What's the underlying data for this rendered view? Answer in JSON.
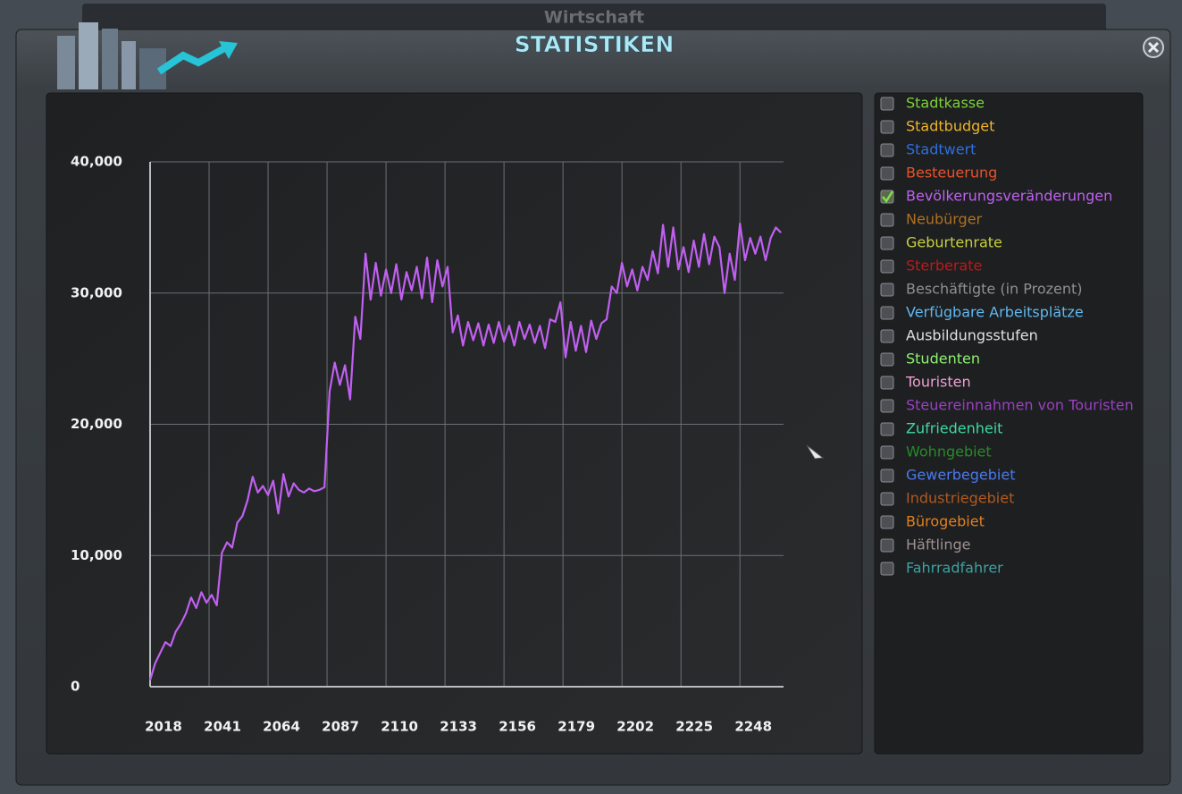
{
  "header": {
    "title": "STATISTIKEN",
    "behind_tab": "Wirtschaft"
  },
  "legend": [
    {
      "label": "Stadtkasse",
      "color": "#7fd13b",
      "checked": false
    },
    {
      "label": "Stadtbudget",
      "color": "#f0b429",
      "checked": false
    },
    {
      "label": "Stadtwert",
      "color": "#2f6fe0",
      "checked": false
    },
    {
      "label": "Besteuerung",
      "color": "#e8522a",
      "checked": false
    },
    {
      "label": "Bevölkerungsveränderungen",
      "color": "#c060f0",
      "checked": true
    },
    {
      "label": "Neubürger",
      "color": "#b07020",
      "checked": false
    },
    {
      "label": "Geburtenrate",
      "color": "#c8d040",
      "checked": false
    },
    {
      "label": "Sterberate",
      "color": "#c01818",
      "checked": false
    },
    {
      "label": "Beschäftigte (in Prozent)",
      "color": "#909090",
      "checked": false
    },
    {
      "label": "Verfügbare Arbeitsplätze",
      "color": "#60b8f0",
      "checked": false
    },
    {
      "label": "Ausbildungsstufen",
      "color": "#e0e0e0",
      "checked": false
    },
    {
      "label": "Studenten",
      "color": "#90f070",
      "checked": false
    },
    {
      "label": "Touristen",
      "color": "#f0a0d0",
      "checked": false
    },
    {
      "label": "Steuereinnahmen von Touristen",
      "color": "#9a40c0",
      "checked": false
    },
    {
      "label": "Zufriedenheit",
      "color": "#40d8a0",
      "checked": false
    },
    {
      "label": "Wohngebiet",
      "color": "#2a8a2a",
      "checked": false
    },
    {
      "label": "Gewerbegebiet",
      "color": "#4a7af0",
      "checked": false
    },
    {
      "label": "Industriegebiet",
      "color": "#b05a20",
      "checked": false
    },
    {
      "label": "Bürogebiet",
      "color": "#e08020",
      "checked": false
    },
    {
      "label": "Häftlinge",
      "color": "#a09090",
      "checked": false
    },
    {
      "label": "Fahrradfahrer",
      "color": "#40a0a0",
      "checked": false
    }
  ],
  "chart_data": {
    "type": "line",
    "xlim": [
      2018,
      2265
    ],
    "xticks": [
      2018,
      2041,
      2064,
      2087,
      2110,
      2133,
      2156,
      2179,
      2202,
      2225,
      2248
    ],
    "ylim": [
      0,
      40000
    ],
    "yticks": [
      0,
      {
        "value": 10000,
        "label": "10,000"
      },
      {
        "value": 20000,
        "label": "20,000"
      },
      {
        "value": 30000,
        "label": "30,000"
      },
      {
        "value": 40000,
        "label": "40,000"
      }
    ],
    "grid": true,
    "x": [
      2018,
      2020,
      2022,
      2024,
      2026,
      2028,
      2030,
      2032,
      2034,
      2036,
      2038,
      2040,
      2042,
      2044,
      2046,
      2048,
      2050,
      2052,
      2054,
      2056,
      2058,
      2060,
      2062,
      2064,
      2066,
      2068,
      2070,
      2072,
      2074,
      2076,
      2078,
      2080,
      2082,
      2084,
      2086,
      2088,
      2090,
      2092,
      2094,
      2096,
      2098,
      2100,
      2102,
      2104,
      2106,
      2108,
      2110,
      2112,
      2114,
      2116,
      2118,
      2120,
      2122,
      2124,
      2126,
      2128,
      2130,
      2132,
      2134,
      2136,
      2138,
      2140,
      2142,
      2144,
      2146,
      2148,
      2150,
      2152,
      2154,
      2156,
      2158,
      2160,
      2162,
      2164,
      2166,
      2168,
      2170,
      2172,
      2174,
      2176,
      2178,
      2180,
      2182,
      2184,
      2186,
      2188,
      2190,
      2192,
      2194,
      2196,
      2198,
      2200,
      2202,
      2204,
      2206,
      2208,
      2210,
      2212,
      2214,
      2216,
      2218,
      2220,
      2222,
      2224,
      2226,
      2228,
      2230,
      2232,
      2234,
      2236,
      2238,
      2240,
      2242,
      2244,
      2246,
      2248,
      2250,
      2252,
      2254,
      2256,
      2258,
      2260,
      2262,
      2264
    ],
    "series": [
      {
        "color": "#c060f0",
        "values": [
          500,
          1800,
          2600,
          3400,
          3100,
          4200,
          4800,
          5600,
          6800,
          6000,
          7200,
          6400,
          7000,
          6200,
          10200,
          11000,
          10600,
          12500,
          13000,
          14200,
          16000,
          14800,
          15300,
          14600,
          15700,
          13200,
          16200,
          14500,
          15500,
          15000,
          14800,
          15100,
          14900,
          15000,
          15200,
          22500,
          24700,
          23000,
          24500,
          21900,
          28200,
          26500,
          33000,
          29500,
          32300,
          29800,
          31800,
          30000,
          32200,
          29500,
          31600,
          30200,
          32000,
          29600,
          32700,
          29300,
          32500,
          30500,
          32000,
          27000,
          28300,
          26000,
          27800,
          26400,
          27700,
          26000,
          27600,
          26200,
          27800,
          26300,
          27500,
          26000,
          27800,
          26500,
          27600,
          26200,
          27500,
          25800,
          28000,
          27800,
          29300,
          25100,
          27800,
          25600,
          27500,
          25500,
          27900,
          26500,
          27700,
          28000,
          30500,
          30000,
          32300,
          30500,
          31800,
          30200,
          32000,
          31000,
          33200,
          31500,
          35200,
          32000,
          35000,
          31800,
          33500,
          31600,
          34000,
          32000,
          34500,
          32200,
          34300,
          33500,
          30000,
          33000,
          31000,
          35300,
          32500,
          34200,
          33000,
          34300,
          32500,
          34200,
          35000,
          34600
        ]
      }
    ]
  }
}
